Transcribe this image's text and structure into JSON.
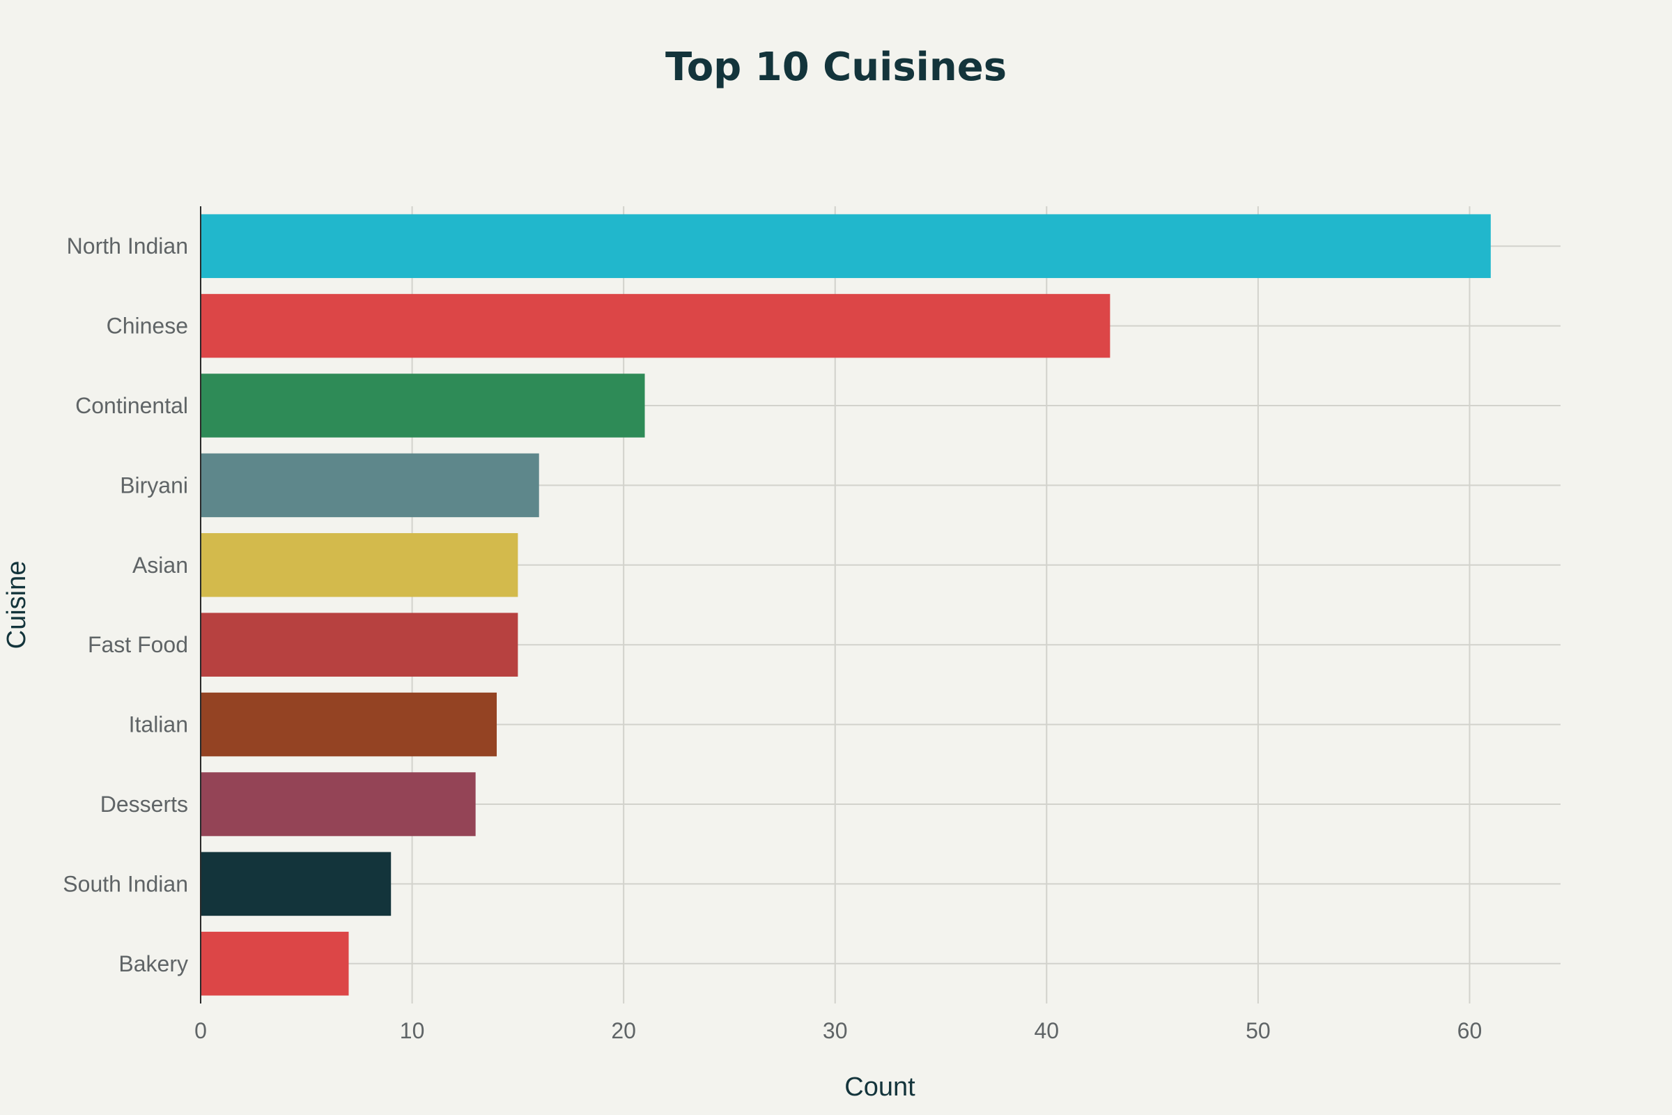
{
  "chart_data": {
    "type": "bar",
    "orientation": "horizontal",
    "title": "Top 10 Cuisines",
    "xlabel": "Count",
    "ylabel": "Cuisine",
    "xlim": [
      0,
      64.3
    ],
    "xticks": [
      0,
      10,
      20,
      30,
      40,
      50,
      60
    ],
    "grid": true,
    "categories": [
      "North Indian",
      "Chinese",
      "Continental",
      "Biryani",
      "Asian",
      "Fast Food",
      "Italian",
      "Desserts",
      "South Indian",
      "Bakery"
    ],
    "values": [
      61,
      43,
      21,
      16,
      15,
      15,
      14,
      13,
      9,
      7
    ],
    "colors": [
      "#21b7cc",
      "#dc4647",
      "#2e8b57",
      "#5e878b",
      "#d3ba4c",
      "#b74140",
      "#944323",
      "#944456",
      "#13343b",
      "#dc4647"
    ]
  }
}
